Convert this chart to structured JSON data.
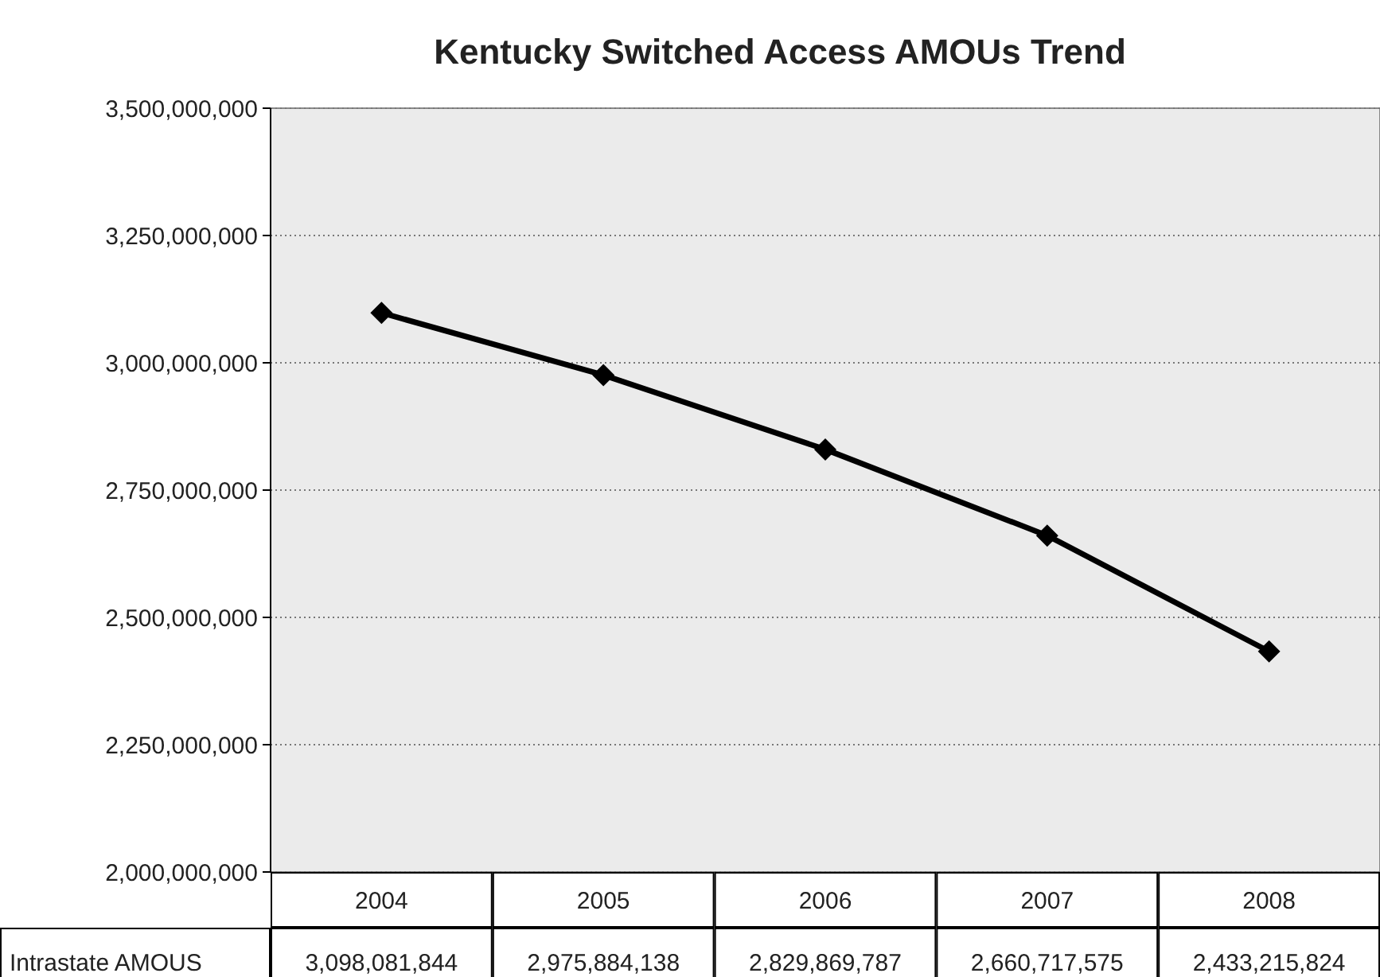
{
  "chart_data": {
    "type": "line",
    "title": "Kentucky Switched Access AMOUs Trend",
    "categories": [
      "2004",
      "2005",
      "2006",
      "2007",
      "2008"
    ],
    "series": [
      {
        "name": "Intrastate AMOUS",
        "color": "#000000",
        "values": [
          3098081844,
          2975884138,
          2829869787,
          2660717575,
          2433215824
        ],
        "value_labels": [
          "3,098,081,844",
          "2,975,884,138",
          "2,829,869,787",
          "2,660,717,575",
          "2,433,215,824"
        ]
      }
    ],
    "ylim": [
      2000000000,
      3500000000
    ],
    "yticks": [
      {
        "value": 2000000000,
        "label": "2,000,000,000"
      },
      {
        "value": 2250000000,
        "label": "2,250,000,000"
      },
      {
        "value": 2500000000,
        "label": "2,500,000,000"
      },
      {
        "value": 2750000000,
        "label": "2,750,000,000"
      },
      {
        "value": 3000000000,
        "label": "3,000,000,000"
      },
      {
        "value": 3250000000,
        "label": "3,250,000,000"
      },
      {
        "value": 3500000000,
        "label": "3,500,000,000"
      }
    ],
    "grid": "y",
    "marker": "diamond",
    "line_style": "solid",
    "legend": "bottom left"
  }
}
